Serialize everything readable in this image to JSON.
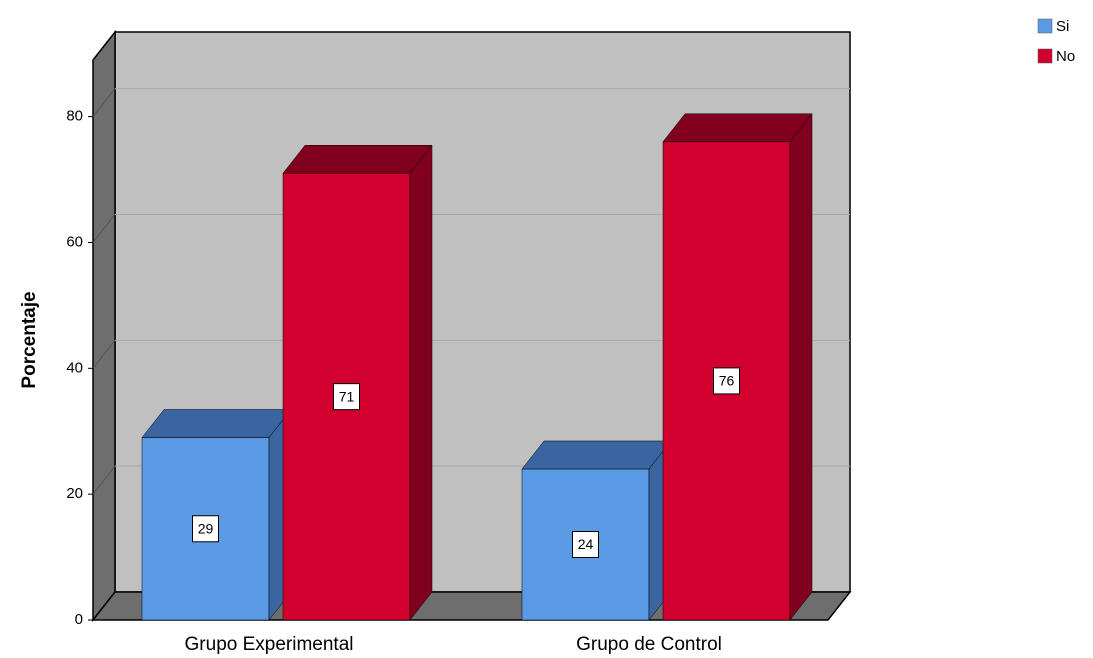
{
  "chart_data": {
    "type": "bar3d",
    "y_label": "Porcentaje",
    "categories": [
      "Grupo Experimental",
      "Grupo de Control"
    ],
    "series": [
      {
        "name": "Si",
        "color": "#5b9be6",
        "values": [
          29,
          24
        ]
      },
      {
        "name": "No",
        "color": "#d2002f",
        "values": [
          71,
          76
        ]
      }
    ],
    "ylim": [
      0,
      89
    ],
    "yticks": [
      0,
      20,
      40,
      60,
      80
    ],
    "grid": true,
    "legend": "top-right"
  }
}
